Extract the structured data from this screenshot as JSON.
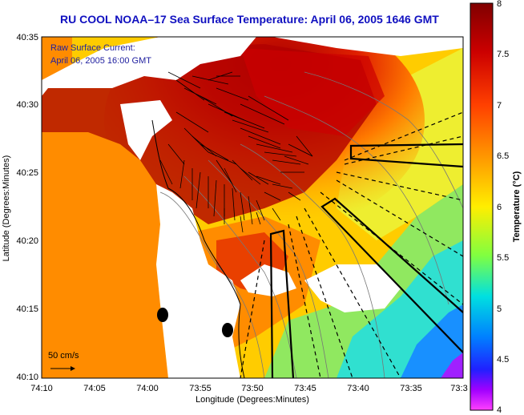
{
  "title": "RU COOL  NOAA–17  Sea Surface Temperature:  April 06, 2005 1646 GMT",
  "overlay": {
    "line1": "Raw Surface Current:",
    "line2": "April 06, 2005 16:00 GMT",
    "scale_label": "50 cm/s"
  },
  "axes": {
    "xlabel": "Longitude (Degrees:Minutes)",
    "ylabel": "Latitude (Degrees:Minutes)",
    "xticks": [
      "74:10",
      "74:05",
      "74:00",
      "73:55",
      "73:50",
      "73:45",
      "73:40",
      "73:35",
      "73:3"
    ],
    "yticks": [
      "40:35",
      "40:30",
      "40:25",
      "40:20",
      "40:15",
      "40:10"
    ]
  },
  "colorbar": {
    "label": "Temperature (°C)",
    "ticks": [
      "8",
      "7.5",
      "7",
      "6.5",
      "6",
      "5.5",
      "5",
      "4.5",
      "4"
    ],
    "min": 4,
    "max": 8
  },
  "colors": {
    "land": "#ff8c00",
    "title": "#1010c0"
  }
}
